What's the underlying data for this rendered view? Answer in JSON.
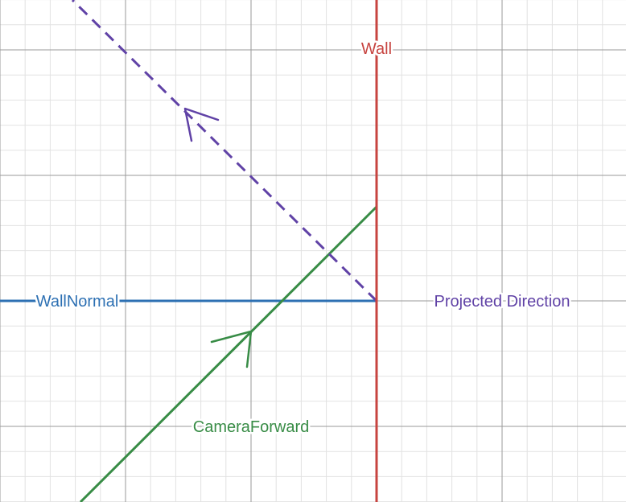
{
  "diagram": {
    "labels": {
      "wall": "Wall",
      "wall_normal": "WallNormal",
      "projected_direction": "Projected Direction",
      "camera_forward": "CameraForward"
    },
    "colors": {
      "wall": "#c74440",
      "wall_normal": "#2d70b3",
      "projected_direction": "#6042a6",
      "camera_forward": "#388c46",
      "grid_major": "#9a9a9a",
      "grid_minor": "#e2e2e2"
    }
  }
}
